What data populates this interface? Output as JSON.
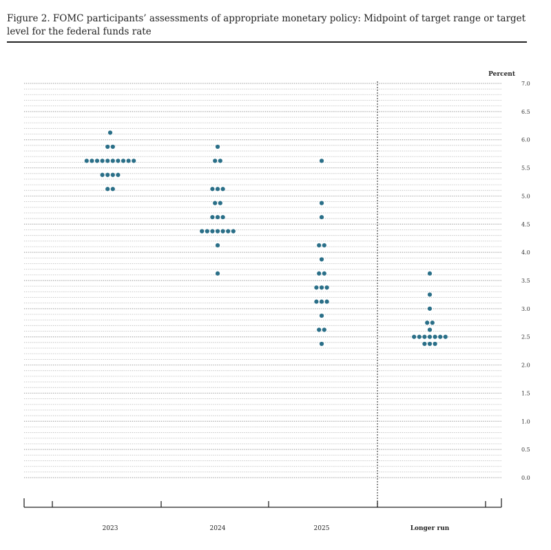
{
  "figure": {
    "title": "Figure 2.  FOMC participants’ assessments of appropriate monetary policy:  Midpoint of target range or target level for the federal funds rate"
  },
  "chart_data": {
    "type": "scatter",
    "ylabel": "Percent",
    "ylim": [
      0,
      7
    ],
    "yticks": [
      "0.0",
      "0.5",
      "1.0",
      "1.5",
      "2.0",
      "2.5",
      "3.0",
      "3.5",
      "4.0",
      "4.5",
      "5.0",
      "5.5",
      "6.0",
      "6.5",
      "7.0"
    ],
    "categories": [
      "2023",
      "2024",
      "2025",
      "Longer run"
    ],
    "grid": true,
    "colors": {
      "dot": "#2a6f88",
      "grid": "#9a9a9a",
      "axis": "#222222"
    },
    "dot_counts": [
      {
        "category": "2023",
        "counts": [
          {
            "y": 6.125,
            "n": 1
          },
          {
            "y": 5.875,
            "n": 2
          },
          {
            "y": 5.625,
            "n": 10
          },
          {
            "y": 5.375,
            "n": 4
          },
          {
            "y": 5.125,
            "n": 2
          }
        ]
      },
      {
        "category": "2024",
        "counts": [
          {
            "y": 5.875,
            "n": 1
          },
          {
            "y": 5.625,
            "n": 2
          },
          {
            "y": 5.125,
            "n": 3
          },
          {
            "y": 4.875,
            "n": 2
          },
          {
            "y": 4.625,
            "n": 3
          },
          {
            "y": 4.375,
            "n": 7
          },
          {
            "y": 4.125,
            "n": 1
          },
          {
            "y": 3.625,
            "n": 1
          }
        ]
      },
      {
        "category": "2025",
        "counts": [
          {
            "y": 5.625,
            "n": 1
          },
          {
            "y": 4.875,
            "n": 1
          },
          {
            "y": 4.625,
            "n": 1
          },
          {
            "y": 4.125,
            "n": 2
          },
          {
            "y": 3.875,
            "n": 1
          },
          {
            "y": 3.625,
            "n": 2
          },
          {
            "y": 3.375,
            "n": 3
          },
          {
            "y": 3.125,
            "n": 3
          },
          {
            "y": 2.875,
            "n": 1
          },
          {
            "y": 2.625,
            "n": 2
          },
          {
            "y": 2.375,
            "n": 1
          }
        ]
      },
      {
        "category": "Longer run",
        "counts": [
          {
            "y": 3.625,
            "n": 1
          },
          {
            "y": 3.25,
            "n": 1
          },
          {
            "y": 3.0,
            "n": 1
          },
          {
            "y": 2.75,
            "n": 2
          },
          {
            "y": 2.625,
            "n": 1
          },
          {
            "y": 2.5,
            "n": 7
          },
          {
            "y": 2.375,
            "n": 3
          }
        ]
      }
    ]
  }
}
